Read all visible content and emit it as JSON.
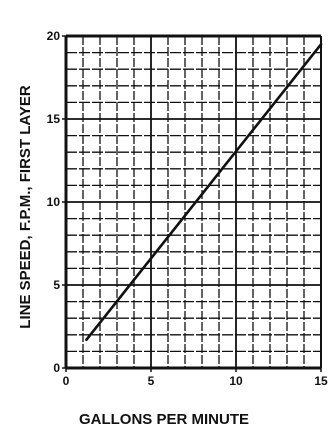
{
  "chart_data": {
    "type": "line",
    "title": "",
    "xlabel": "GALLONS PER MINUTE",
    "ylabel": "LINE SPEED, F.P.M., FIRST LAYER",
    "xlim": [
      0,
      15
    ],
    "ylim": [
      0,
      20
    ],
    "x_ticks": [
      0,
      5,
      10,
      15
    ],
    "y_ticks": [
      0,
      5,
      10,
      15,
      20
    ],
    "grid": true,
    "series": [
      {
        "x": [
          1.2,
          15
        ],
        "y": [
          1.7,
          19.5
        ]
      }
    ]
  },
  "colors": {
    "ink": "#111111",
    "background": "#ffffff"
  }
}
